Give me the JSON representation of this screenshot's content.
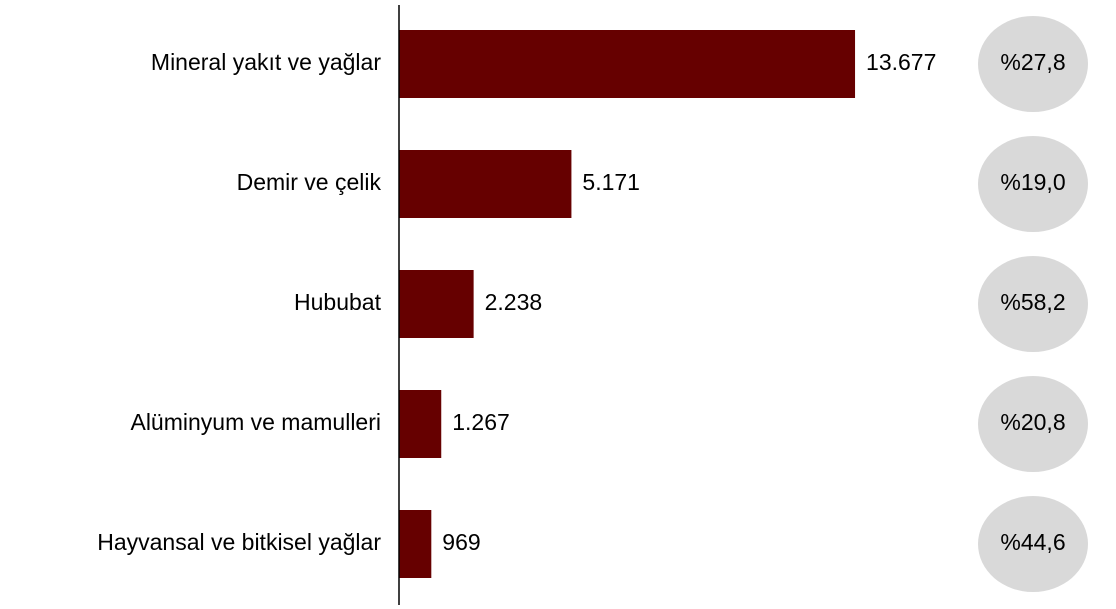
{
  "chart_data": {
    "type": "hbar",
    "categories": [
      "Mineral yakıt ve yağlar",
      "Demir ve çelik",
      "Hububat",
      "Alüminyum ve mamulleri",
      "Hayvansal ve bitkisel yağlar"
    ],
    "values": [
      13677,
      5171,
      2238,
      1267,
      969
    ],
    "value_labels": [
      "13.677",
      "5.171",
      "2.238",
      "1.267",
      "969"
    ],
    "annotations": [
      "%27,8",
      "%19,0",
      "%58,2",
      "%20,8",
      "%44,6"
    ],
    "color": "#660000",
    "annotation_color": "#d9d9d9",
    "xlim": [
      0,
      16000
    ]
  }
}
